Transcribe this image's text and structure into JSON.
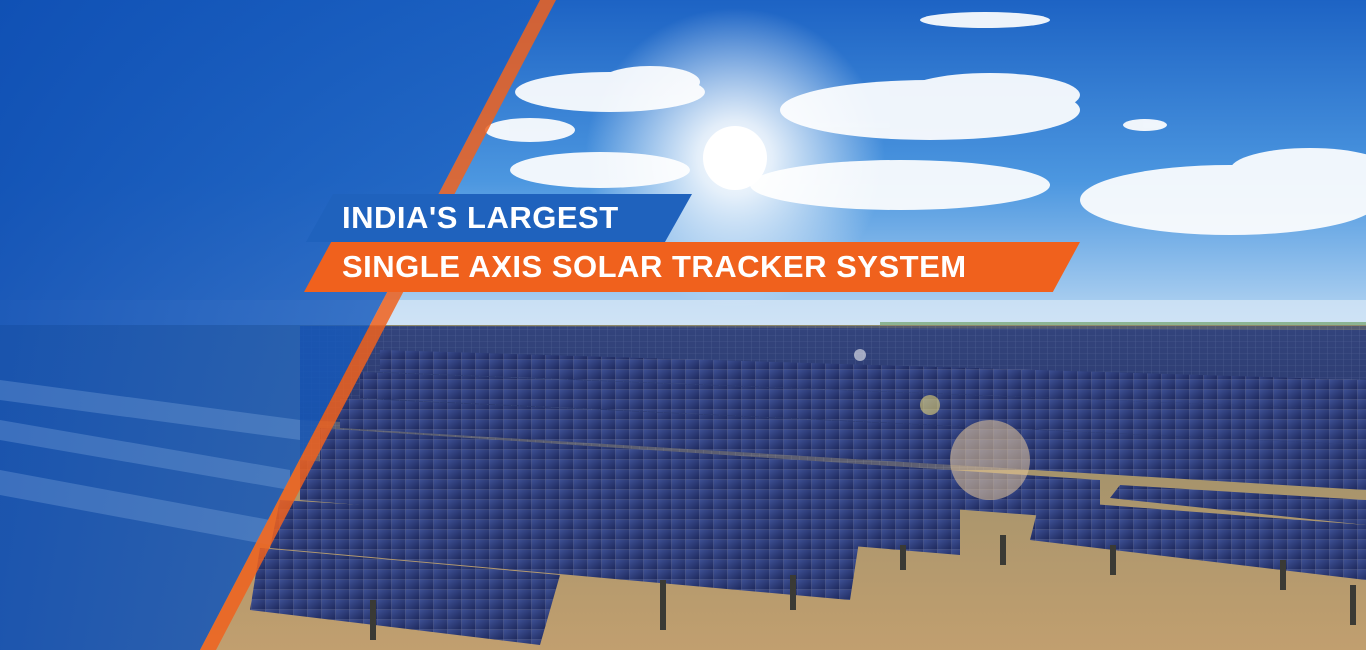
{
  "hero": {
    "headline_line1": "INDIA'S LARGEST",
    "headline_line2": "SINGLE AXIS SOLAR TRACKER SYSTEM"
  },
  "colors": {
    "brand_blue": "#1f62bd",
    "brand_orange": "#f0611d",
    "sky": "#2f7fd6",
    "ground": "#b9986a"
  }
}
